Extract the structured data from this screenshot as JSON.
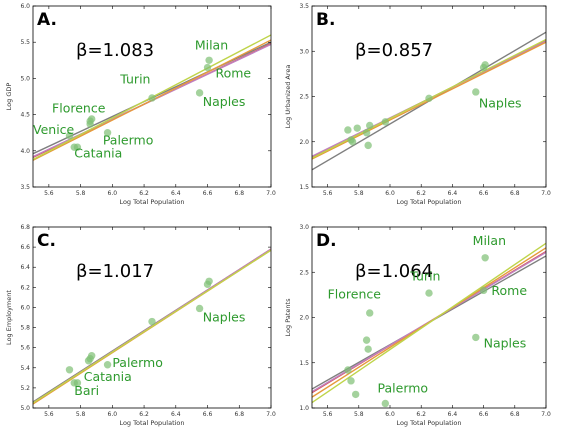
{
  "chart_data": [
    {
      "type": "scatter",
      "panel_label": "A.",
      "beta_text": "β=1.083",
      "xlabel": "Log Total Population",
      "ylabel": "Log GDP",
      "xlim": [
        5.5,
        7.0
      ],
      "ylim": [
        3.5,
        6.0
      ],
      "xticks": [
        "5.6",
        "5.8",
        "6.0",
        "6.2",
        "6.4",
        "6.6",
        "6.8",
        "7.0"
      ],
      "yticks": [
        "3.5",
        "4.0",
        "4.5",
        "5.0",
        "5.5",
        "6.0"
      ],
      "points": [
        [
          5.73,
          4.21
        ],
        [
          5.76,
          4.05
        ],
        [
          5.78,
          4.05
        ],
        [
          5.86,
          4.37
        ],
        [
          5.86,
          4.41
        ],
        [
          5.87,
          4.44
        ],
        [
          5.97,
          4.25
        ],
        [
          6.25,
          4.73
        ],
        [
          6.55,
          4.8
        ],
        [
          6.6,
          5.15
        ],
        [
          6.61,
          5.25
        ]
      ],
      "labels": [
        {
          "text": "Milan",
          "x": 6.52,
          "y": 5.4
        },
        {
          "text": "Rome",
          "x": 6.65,
          "y": 5.01
        },
        {
          "text": "Turin",
          "x": 6.05,
          "y": 4.93
        },
        {
          "text": "Naples",
          "x": 6.57,
          "y": 4.62
        },
        {
          "text": "Florence",
          "x": 5.62,
          "y": 4.53
        },
        {
          "text": "Venice",
          "x": 5.5,
          "y": 4.23
        },
        {
          "text": "Palermo",
          "x": 5.94,
          "y": 4.09
        },
        {
          "text": "Catania",
          "x": 5.76,
          "y": 3.91
        }
      ],
      "lines": [
        {
          "color": "#7f7f7f",
          "y0": 3.96,
          "y1": 5.5
        },
        {
          "color": "#d95a5a",
          "y0": 3.91,
          "y1": 5.48
        },
        {
          "color": "#c080c0",
          "y0": 3.92,
          "y1": 5.47
        },
        {
          "color": "#e69a3a",
          "y0": 3.87,
          "y1": 5.53
        },
        {
          "color": "#bfd44a",
          "y0": 3.88,
          "y1": 5.6
        }
      ]
    },
    {
      "type": "scatter",
      "panel_label": "B.",
      "beta_text": "β=0.857",
      "xlabel": "Log Total Population",
      "ylabel": "Log Urbanized Area",
      "xlim": [
        5.5,
        7.0
      ],
      "ylim": [
        1.5,
        3.5
      ],
      "xticks": [
        "5.6",
        "5.8",
        "6.0",
        "6.2",
        "6.4",
        "6.6",
        "6.8",
        "7.0"
      ],
      "yticks": [
        "1.5",
        "2.0",
        "2.5",
        "3.0",
        "3.5"
      ],
      "points": [
        [
          5.73,
          2.13
        ],
        [
          5.75,
          2.02
        ],
        [
          5.76,
          2.0
        ],
        [
          5.79,
          2.15
        ],
        [
          5.85,
          2.1
        ],
        [
          5.86,
          1.96
        ],
        [
          5.87,
          2.18
        ],
        [
          5.97,
          2.22
        ],
        [
          6.25,
          2.48
        ],
        [
          6.55,
          2.55
        ],
        [
          6.6,
          2.82
        ],
        [
          6.61,
          2.85
        ]
      ],
      "labels": [
        {
          "text": "Naples",
          "x": 6.57,
          "y": 2.38
        }
      ],
      "lines": [
        {
          "color": "#7f7f7f",
          "y0": 1.69,
          "y1": 3.21
        },
        {
          "color": "#d95a5a",
          "y0": 1.83,
          "y1": 3.12
        },
        {
          "color": "#c080c0",
          "y0": 1.84,
          "y1": 3.11
        },
        {
          "color": "#e69a3a",
          "y0": 1.81,
          "y1": 3.1
        },
        {
          "color": "#bfd44a",
          "y0": 1.82,
          "y1": 3.13
        }
      ]
    },
    {
      "type": "scatter",
      "panel_label": "C.",
      "beta_text": "β=1.017",
      "xlabel": "Log Total Population",
      "ylabel": "Log Employment",
      "xlim": [
        5.5,
        7.0
      ],
      "ylim": [
        5.0,
        6.8
      ],
      "xticks": [
        "5.6",
        "5.8",
        "6.0",
        "6.2",
        "6.4",
        "6.6",
        "6.8",
        "7.0"
      ],
      "yticks": [
        "5.0",
        "5.2",
        "5.4",
        "5.6",
        "5.8",
        "6.0",
        "6.2",
        "6.4",
        "6.6",
        "6.8"
      ],
      "points": [
        [
          5.73,
          5.38
        ],
        [
          5.76,
          5.25
        ],
        [
          5.78,
          5.25
        ],
        [
          5.85,
          5.47
        ],
        [
          5.86,
          5.49
        ],
        [
          5.87,
          5.52
        ],
        [
          5.97,
          5.43
        ],
        [
          6.25,
          5.86
        ],
        [
          6.55,
          5.99
        ],
        [
          6.6,
          6.23
        ],
        [
          6.61,
          6.26
        ]
      ],
      "labels": [
        {
          "text": "Naples",
          "x": 6.57,
          "y": 5.86
        },
        {
          "text": "Palermo",
          "x": 6.0,
          "y": 5.41
        },
        {
          "text": "Catania",
          "x": 5.82,
          "y": 5.27
        },
        {
          "text": "Bari",
          "x": 5.76,
          "y": 5.13
        }
      ],
      "lines": [
        {
          "color": "#7f7f7f",
          "y0": 5.06,
          "y1": 6.58
        },
        {
          "color": "#d95a5a",
          "y0": 5.05,
          "y1": 6.58
        },
        {
          "color": "#c080c0",
          "y0": 5.05,
          "y1": 6.58
        },
        {
          "color": "#e69a3a",
          "y0": 5.04,
          "y1": 6.57
        },
        {
          "color": "#bfd44a",
          "y0": 5.05,
          "y1": 6.57
        }
      ]
    },
    {
      "type": "scatter",
      "panel_label": "D.",
      "beta_text": "β=1.064",
      "xlabel": "Log Total Population",
      "ylabel": "Log Patents",
      "xlim": [
        5.5,
        7.0
      ],
      "ylim": [
        1.0,
        3.0
      ],
      "xticks": [
        "5.6",
        "5.8",
        "6.0",
        "6.2",
        "6.4",
        "6.6",
        "6.8",
        "7.0"
      ],
      "yticks": [
        "1.0",
        "1.5",
        "2.0",
        "2.5",
        "3.0"
      ],
      "points": [
        [
          5.73,
          1.42
        ],
        [
          5.75,
          1.3
        ],
        [
          5.78,
          1.15
        ],
        [
          5.85,
          1.75
        ],
        [
          5.86,
          1.65
        ],
        [
          5.87,
          2.05
        ],
        [
          5.97,
          1.05
        ],
        [
          6.25,
          2.27
        ],
        [
          6.55,
          1.78
        ],
        [
          6.6,
          2.3
        ],
        [
          6.61,
          2.66
        ]
      ],
      "labels": [
        {
          "text": "Milan",
          "x": 6.53,
          "y": 2.8
        },
        {
          "text": "Turin",
          "x": 6.13,
          "y": 2.41
        },
        {
          "text": "Rome",
          "x": 6.65,
          "y": 2.25
        },
        {
          "text": "Florence",
          "x": 5.6,
          "y": 2.21
        },
        {
          "text": "Naples",
          "x": 6.6,
          "y": 1.67
        },
        {
          "text": "Palermo",
          "x": 5.92,
          "y": 1.17
        }
      ],
      "lines": [
        {
          "color": "#7f7f7f",
          "y0": 1.21,
          "y1": 2.68
        },
        {
          "color": "#d95a5a",
          "y0": 1.17,
          "y1": 2.73
        },
        {
          "color": "#c080c0",
          "y0": 1.18,
          "y1": 2.72
        },
        {
          "color": "#e69a3a",
          "y0": 1.12,
          "y1": 2.77
        },
        {
          "color": "#bfd44a",
          "y0": 1.06,
          "y1": 2.82
        }
      ]
    }
  ]
}
